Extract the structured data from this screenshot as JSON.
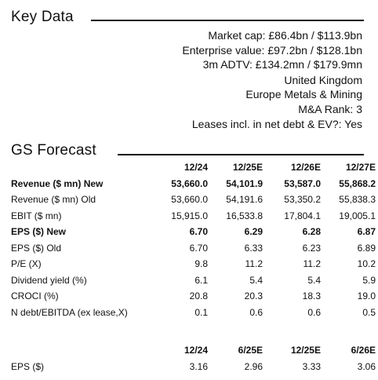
{
  "key_data": {
    "title": "Key Data",
    "lines": [
      "Market cap: £86.4bn / $113.9bn",
      "Enterprise value: £97.2bn / $128.1bn",
      "3m ADTV: £134.2mn / $179.9mn",
      "United Kingdom",
      "Europe Metals & Mining",
      "M&A Rank: 3",
      "Leases incl. in net debt & EV?: Yes"
    ]
  },
  "forecast": {
    "title": "GS Forecast",
    "headers": [
      "12/24",
      "12/25E",
      "12/26E",
      "12/27E"
    ],
    "rows": [
      {
        "label": "Revenue ($ mn) New",
        "bold": true,
        "values": [
          "53,660.0",
          "54,101.9",
          "53,587.0",
          "55,868.2"
        ]
      },
      {
        "label": "Revenue ($ mn) Old",
        "bold": false,
        "values": [
          "53,660.0",
          "54,191.6",
          "53,350.2",
          "55,838.3"
        ]
      },
      {
        "label": "EBIT ($ mn)",
        "bold": false,
        "values": [
          "15,915.0",
          "16,533.8",
          "17,804.1",
          "19,005.1"
        ]
      },
      {
        "label": "EPS ($) New",
        "bold": true,
        "values": [
          "6.70",
          "6.29",
          "6.28",
          "6.87"
        ]
      },
      {
        "label": "EPS ($) Old",
        "bold": false,
        "values": [
          "6.70",
          "6.33",
          "6.23",
          "6.89"
        ]
      },
      {
        "label": "P/E (X)",
        "bold": false,
        "values": [
          "9.8",
          "11.2",
          "11.2",
          "10.2"
        ]
      },
      {
        "label": "Dividend yield (%)",
        "bold": false,
        "values": [
          "6.1",
          "5.4",
          "5.4",
          "5.9"
        ]
      },
      {
        "label": "CROCI (%)",
        "bold": false,
        "values": [
          "20.8",
          "20.3",
          "18.3",
          "19.0"
        ]
      },
      {
        "label": "N debt/EBITDA (ex lease,X)",
        "bold": false,
        "values": [
          "0.1",
          "0.6",
          "0.6",
          "0.5"
        ]
      }
    ]
  },
  "semiannual": {
    "headers": [
      "12/24",
      "6/25E",
      "12/25E",
      "6/26E"
    ],
    "rows": [
      {
        "label": "EPS ($)",
        "values": [
          "3.16",
          "2.96",
          "3.33",
          "3.06"
        ]
      }
    ]
  }
}
